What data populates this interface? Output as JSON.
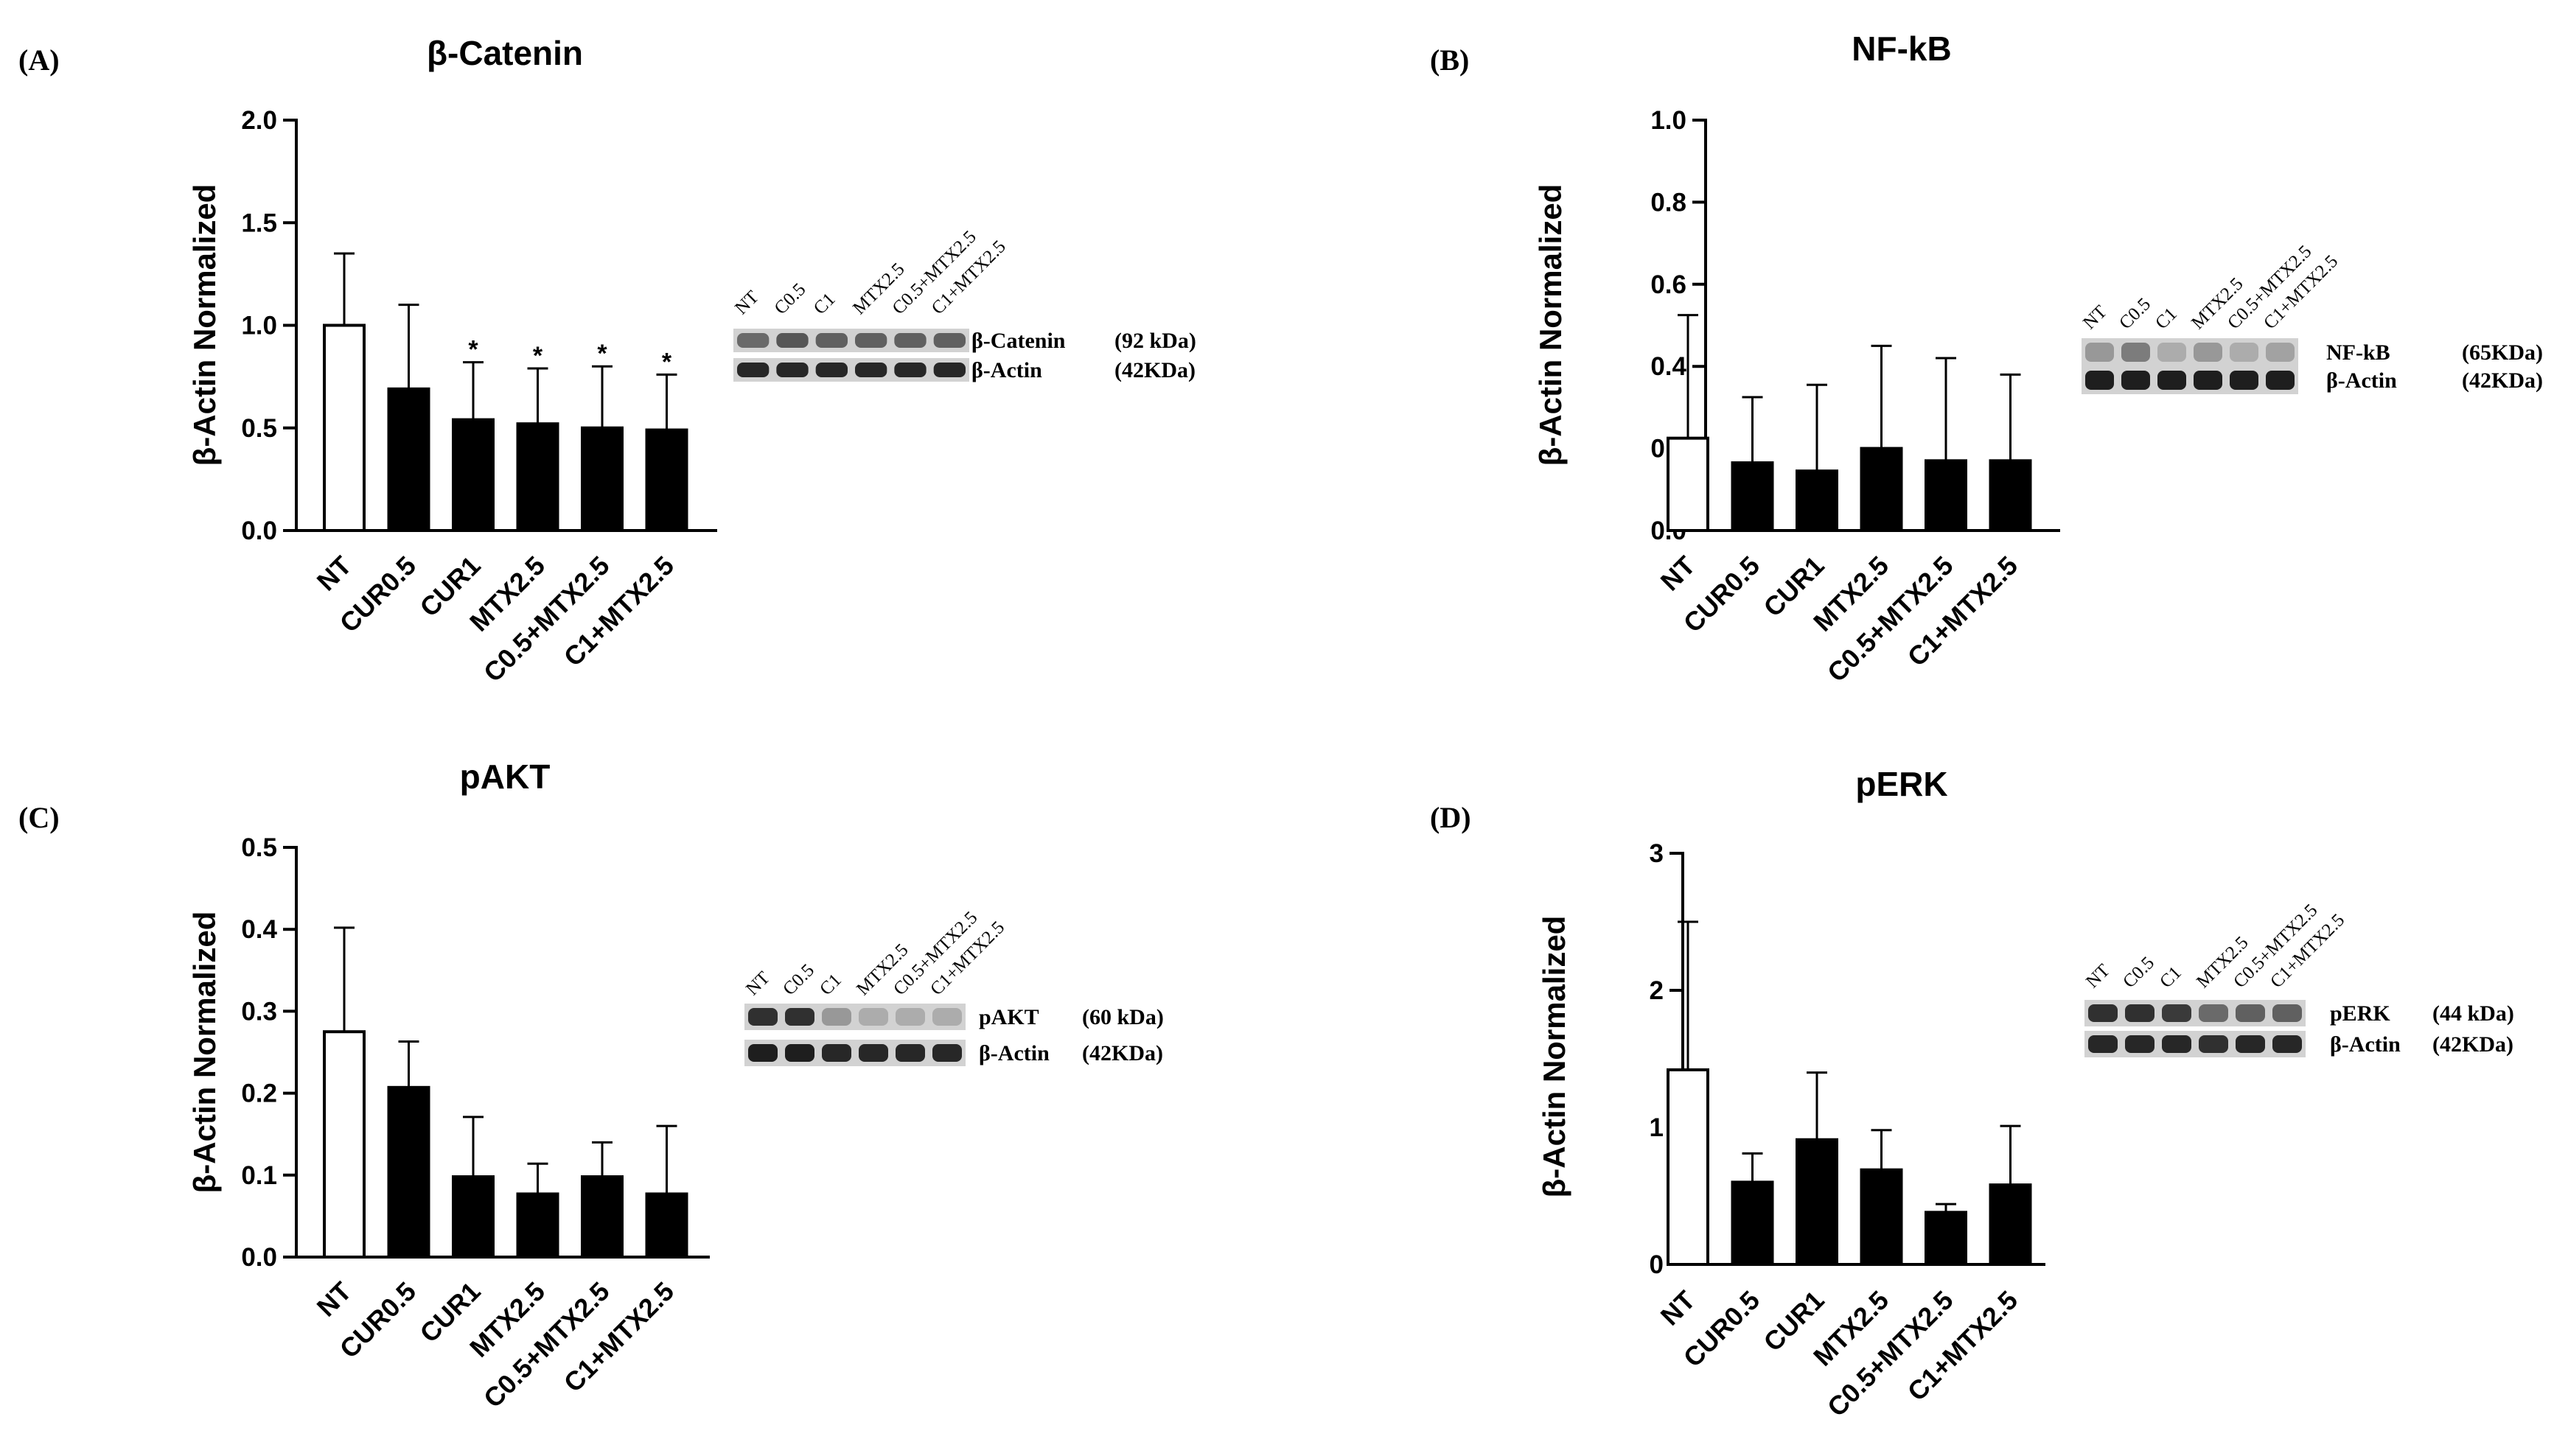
{
  "chart_data": [
    {
      "panel": "(A)",
      "type": "bar",
      "title": "β-Catenin",
      "ylabel": "β-Actin Normalized",
      "xlabel": "",
      "ylim": [
        0,
        2.0
      ],
      "yticks": [
        "0.0",
        "0.5",
        "1.0",
        "1.5",
        "2.0"
      ],
      "categories": [
        "NT",
        "CUR0.5",
        "CUR1",
        "MTX2.5",
        "C0.5+MTX2.5",
        "C1+MTX2.5"
      ],
      "values": [
        1.0,
        0.69,
        0.54,
        0.52,
        0.5,
        0.49
      ],
      "errors": [
        0.35,
        0.41,
        0.28,
        0.27,
        0.3,
        0.27
      ],
      "significance": [
        "",
        "",
        "*",
        "*",
        "*",
        "*"
      ],
      "blot": {
        "lanes": [
          "NT",
          "C0.5",
          "C1",
          "MTX2.5",
          "C0.5+MTX2.5",
          "C1+MTX2.5"
        ],
        "bands": [
          {
            "protein": "β-Catenin",
            "mw": "(92 kDa)",
            "intensity": [
              0.55,
              0.65,
              0.6,
              0.6,
              0.6,
              0.6
            ]
          },
          {
            "protein": "β-Actin",
            "mw": "(42KDa)",
            "intensity": [
              0.9,
              0.9,
              0.9,
              0.9,
              0.9,
              0.9
            ]
          }
        ]
      }
    },
    {
      "panel": "(B)",
      "type": "bar",
      "title": "NF-kB",
      "ylabel": "β-Actin Normalized",
      "xlabel": "",
      "ylim": [
        0,
        1.0
      ],
      "yticks": [
        "0.0",
        "0.2",
        "0.4",
        "0.6",
        "0.8",
        "1.0"
      ],
      "categories": [
        "NT",
        "CUR0.5",
        "CUR1",
        "MTX2.5",
        "C0.5+MTX2.5",
        "C1+MTX2.5"
      ],
      "values": [
        0.225,
        0.165,
        0.145,
        0.2,
        0.17,
        0.17
      ],
      "errors": [
        0.3,
        0.16,
        0.21,
        0.25,
        0.25,
        0.21
      ],
      "significance": [
        "",
        "",
        "",
        "",
        "",
        ""
      ],
      "blot": {
        "lanes": [
          "NT",
          "C0.5",
          "C1",
          "MTX2.5",
          "C0.5+MTX2.5",
          "C1+MTX2.5"
        ],
        "bands": [
          {
            "protein": "NF-kB",
            "mw": "(65KDa)",
            "intensity": [
              0.3,
              0.45,
              0.2,
              0.3,
              0.2,
              0.25
            ]
          },
          {
            "protein": "β-Actin",
            "mw": "(42KDa)",
            "intensity": [
              0.95,
              0.95,
              0.95,
              0.95,
              0.95,
              0.95
            ]
          }
        ]
      }
    },
    {
      "panel": "(C)",
      "type": "bar",
      "title": "pAKT",
      "ylabel": "β-Actin Normalized",
      "xlabel": "",
      "ylim": [
        0,
        0.5
      ],
      "yticks": [
        "0.0",
        "0.1",
        "0.2",
        "0.3",
        "0.4",
        "0.5"
      ],
      "categories": [
        "NT",
        "CUR0.5",
        "CUR1",
        "MTX2.5",
        "C0.5+MTX2.5",
        "C1+MTX2.5"
      ],
      "values": [
        0.275,
        0.207,
        0.098,
        0.077,
        0.098,
        0.077
      ],
      "errors": [
        0.127,
        0.056,
        0.073,
        0.037,
        0.042,
        0.083
      ],
      "significance": [
        "",
        "",
        "",
        "",
        "",
        ""
      ],
      "blot": {
        "lanes": [
          "NT",
          "C0.5",
          "C1",
          "MTX2.5",
          "C0.5+MTX2.5",
          "C1+MTX2.5"
        ],
        "bands": [
          {
            "protein": "pAKT",
            "mw": "(60 kDa)",
            "intensity": [
              0.85,
              0.85,
              0.3,
              0.2,
              0.2,
              0.2
            ]
          },
          {
            "protein": "β-Actin",
            "mw": "(42KDa)",
            "intensity": [
              0.95,
              0.95,
              0.9,
              0.9,
              0.9,
              0.9
            ]
          }
        ]
      }
    },
    {
      "panel": "(D)",
      "type": "bar",
      "title": "pERK",
      "ylabel": "β-Actin Normalized",
      "xlabel": "",
      "ylim": [
        0,
        3
      ],
      "yticks": [
        "0",
        "1",
        "2",
        "3"
      ],
      "categories": [
        "NT",
        "CUR0.5",
        "CUR1",
        "MTX2.5",
        "C0.5+MTX2.5",
        "C1+MTX2.5"
      ],
      "values": [
        1.42,
        0.6,
        0.91,
        0.69,
        0.38,
        0.58
      ],
      "errors": [
        1.08,
        0.21,
        0.49,
        0.29,
        0.06,
        0.43
      ],
      "significance": [
        "",
        "",
        "",
        "",
        "",
        ""
      ],
      "blot": {
        "lanes": [
          "NT",
          "C0.5",
          "C1",
          "MTX2.5",
          "C0.5+MTX2.5",
          "C1+MTX2.5"
        ],
        "bands": [
          {
            "protein": "pERK",
            "mw": "(44 kDa)",
            "intensity": [
              0.85,
              0.85,
              0.8,
              0.55,
              0.6,
              0.6
            ]
          },
          {
            "protein": "β-Actin",
            "mw": "(42KDa)",
            "intensity": [
              0.9,
              0.9,
              0.9,
              0.85,
              0.9,
              0.9
            ]
          }
        ]
      }
    }
  ],
  "colors": {
    "control_bar": "#ffffff",
    "treated_bar": "#000000",
    "axis": "#000000",
    "blot_bg": "#d2d2d2",
    "blot_band": "#141414"
  }
}
